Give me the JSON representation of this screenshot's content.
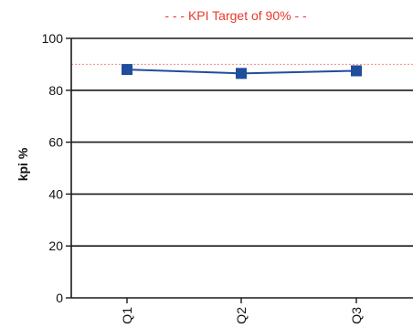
{
  "chart_data": {
    "type": "line",
    "title": "",
    "xlabel": "",
    "ylabel": "kpi %",
    "categories": [
      "Q1",
      "Q2",
      "Q3"
    ],
    "series": [
      {
        "values": [
          88,
          86.5,
          87.5
        ],
        "color": "#1f4e9c",
        "marker": "square"
      }
    ],
    "ylim": [
      0,
      100
    ],
    "yticks": [
      "0",
      "20",
      "40",
      "60",
      "80",
      "100"
    ],
    "grid": true,
    "target": {
      "label": "- - - KPI Target of 90% - -",
      "value": 90,
      "color": "#e8392e"
    }
  }
}
